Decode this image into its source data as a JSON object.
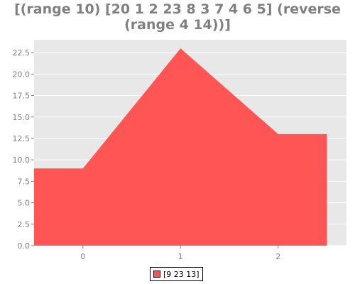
{
  "chart_data": {
    "type": "area",
    "title": "[(range 10) [20 1 2 23 8 3 7 4 6 5] (reverse (range 4 14))]",
    "title_lines": [
      "[(range 10) [20 1 2 23 8 3 7 4 6 5] (reverse",
      "(range 4 14))]"
    ],
    "x": [
      0,
      1,
      2
    ],
    "series": [
      {
        "name": "[9 23 13]",
        "values": [
          9,
          23,
          13
        ],
        "color": "#ff5555"
      }
    ],
    "xticks": [
      "0",
      "1",
      "2"
    ],
    "yticks": [
      "0.0",
      "2.5",
      "5.0",
      "7.5",
      "10.0",
      "12.5",
      "15.0",
      "17.5",
      "20.0",
      "22.5"
    ],
    "ylim": [
      0,
      24
    ],
    "grid": true,
    "plot_background": "#e8e8e8",
    "legend_position": "bottom-center"
  }
}
